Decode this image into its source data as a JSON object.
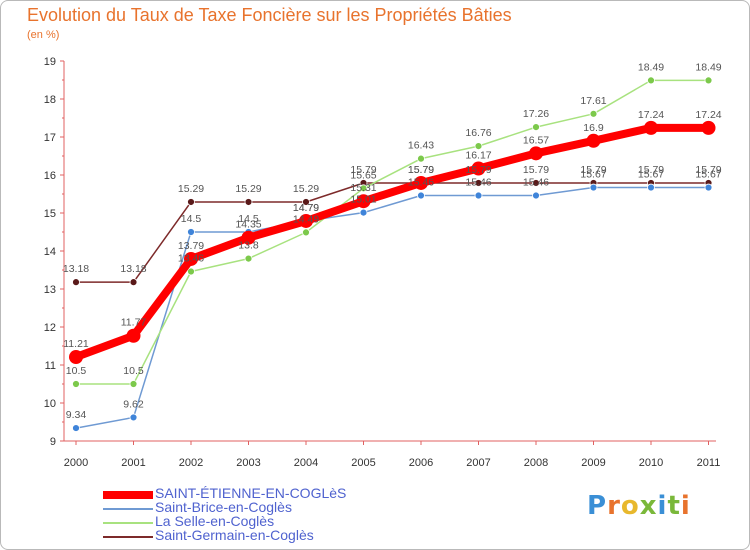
{
  "title": "Evolution du Taux de Taxe Foncière sur les Propriétés Bâties",
  "unit_label": "(en %)",
  "logo_text": "Proxiti",
  "logo_colors": [
    "#3a8fd6",
    "#e8732d",
    "#e8b82d",
    "#7ab83a",
    "#3a8fd6",
    "#7ab83a",
    "#e8732d"
  ],
  "chart_data": {
    "type": "line",
    "title": "Evolution du Taux de Taxe Foncière sur les Propriétés Bâties",
    "ylabel": "(en %)",
    "xlabel": "",
    "categories": [
      "2000",
      "2001",
      "2002",
      "2003",
      "2004",
      "2005",
      "2006",
      "2007",
      "2008",
      "2009",
      "2010",
      "2011"
    ],
    "ylim": [
      9,
      19
    ],
    "yticks": [
      "9",
      "10",
      "11",
      "12",
      "13",
      "14",
      "15",
      "16",
      "17",
      "18",
      "19"
    ],
    "grid": false,
    "legend": "bottom-left",
    "series": [
      {
        "name": "SAINT-ÉTIENNE-EN-COGLèS",
        "color": "#ff0000",
        "marker": "#ff0000",
        "width": "thick",
        "values": [
          11.21,
          11.77,
          13.79,
          14.35,
          14.79,
          15.31,
          15.79,
          16.17,
          16.57,
          16.9,
          17.24,
          17.24
        ],
        "labels": [
          "11.21",
          "11.77",
          "13.79",
          "14.35",
          "14.79",
          "15.31",
          "15.79",
          "16.17",
          "16.57",
          "16.9",
          "17.24",
          "17.24"
        ]
      },
      {
        "name": "Saint-Brice-en-Coglès",
        "color": "#6f9ad3",
        "marker": "#3f84d9",
        "width": "thin",
        "values": [
          9.34,
          9.62,
          14.5,
          14.5,
          14.79,
          15.01,
          15.46,
          15.46,
          15.46,
          15.67,
          15.67,
          15.67
        ],
        "labels": [
          "9.34",
          "9.62",
          "14.5",
          "14.5",
          "14.79",
          "15.01",
          "15.46",
          "15.46",
          "15.46",
          "15.67",
          "15.67",
          "15.67"
        ]
      },
      {
        "name": "La Selle-en-Coglès",
        "color": "#a8e27f",
        "marker": "#7cc94b",
        "width": "thin",
        "values": [
          10.5,
          10.5,
          13.46,
          13.8,
          14.49,
          15.65,
          16.43,
          16.76,
          17.26,
          17.61,
          18.49,
          18.49
        ],
        "labels": [
          "10.5",
          "10.5",
          "13.46",
          "13.8",
          "14.49",
          "15.65",
          "16.43",
          "16.76",
          "17.26",
          "17.61",
          "18.49",
          "18.49"
        ]
      },
      {
        "name": "Saint-Germain-en-Coglès",
        "color": "#7d2a2a",
        "marker": "#5a1a1a",
        "width": "thin",
        "values": [
          13.18,
          13.18,
          15.29,
          15.29,
          15.29,
          15.79,
          15.79,
          15.79,
          15.79,
          15.79,
          15.79,
          15.79
        ],
        "labels": [
          "13.18",
          "13.18",
          "15.29",
          "15.29",
          "15.29",
          "15.79",
          "15.79",
          "15.79",
          "15.79",
          "15.79",
          "15.79",
          "15.79"
        ]
      }
    ]
  }
}
